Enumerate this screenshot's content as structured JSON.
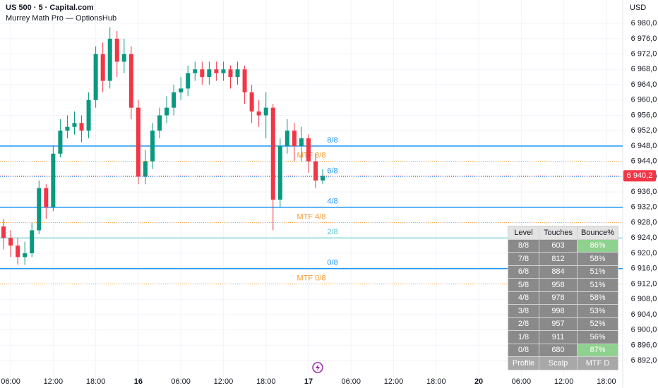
{
  "header": {
    "symbol": "US 500 · 5 · Capital.com",
    "indicator": "Murrey Math Pro — OptionsHub",
    "currency": "USD"
  },
  "chart_data": {
    "type": "candlestick",
    "up_color": "#089981",
    "down_color": "#f23645",
    "grid": true,
    "ylim": [
      6887.6,
      6986.1
    ],
    "yticks": [
      {
        "value": 6980,
        "label": "6 980,0"
      },
      {
        "value": 6976,
        "label": "6 976,0"
      },
      {
        "value": 6972,
        "label": "6 972,0"
      },
      {
        "value": 6968,
        "label": "6 968,0"
      },
      {
        "value": 6964,
        "label": "6 964,0"
      },
      {
        "value": 6960,
        "label": "6 960,0"
      },
      {
        "value": 6956,
        "label": "6 956,0"
      },
      {
        "value": 6952,
        "label": "6 952,0"
      },
      {
        "value": 6948,
        "label": "6 948,0"
      },
      {
        "value": 6944,
        "label": "6 944,0"
      },
      {
        "value": 6940,
        "label": "6 940,0"
      },
      {
        "value": 6936,
        "label": "6 936,0"
      },
      {
        "value": 6932,
        "label": "6 932,0"
      },
      {
        "value": 6928,
        "label": "6 928,0"
      },
      {
        "value": 6924,
        "label": "6 924,0"
      },
      {
        "value": 6920,
        "label": "6 920,0"
      },
      {
        "value": 6916,
        "label": "6 916,0"
      },
      {
        "value": 6912,
        "label": "6 912,0"
      },
      {
        "value": 6908,
        "label": "6 908,0"
      },
      {
        "value": 6904,
        "label": "6 904,0"
      },
      {
        "value": 6900,
        "label": "6 900,0"
      },
      {
        "value": 6896,
        "label": "6 896,0"
      },
      {
        "value": 6892,
        "label": "6 892,0"
      }
    ],
    "xlim": [
      4.5,
      92.3
    ],
    "xticks": [
      {
        "value": 6,
        "label": "06:00"
      },
      {
        "value": 12,
        "label": "12:00"
      },
      {
        "value": 18,
        "label": "18:00"
      },
      {
        "value": 24,
        "label": "16"
      },
      {
        "value": 30,
        "label": "06:00"
      },
      {
        "value": 36,
        "label": "12:00"
      },
      {
        "value": 42,
        "label": "18:00"
      },
      {
        "value": 48,
        "label": "17"
      },
      {
        "value": 54,
        "label": "06:00"
      },
      {
        "value": 60,
        "label": "12:00"
      },
      {
        "value": 66,
        "label": "18:00"
      },
      {
        "value": 72,
        "label": "20"
      },
      {
        "value": 78,
        "label": "06:00"
      },
      {
        "value": 84,
        "label": "12:00"
      },
      {
        "value": 90,
        "label": "18:00"
      }
    ],
    "x": [
      5,
      6,
      7,
      8,
      9,
      10,
      11,
      12,
      13,
      14,
      15,
      16,
      17,
      18,
      19,
      20,
      21,
      22,
      23,
      24,
      25,
      26,
      27,
      28,
      29,
      30,
      31,
      32,
      33,
      34,
      35,
      36,
      37,
      38,
      39,
      40,
      41,
      42,
      43,
      44,
      45,
      46,
      47,
      48,
      49,
      50
    ],
    "open": [
      6927,
      6924,
      6922,
      6919,
      6920,
      6926,
      6937,
      6932,
      6946,
      6952,
      6953,
      6954,
      6952,
      6960,
      6972,
      6965,
      6976,
      6970,
      6972,
      6958,
      6940,
      6944,
      6952,
      6956,
      6958,
      6962,
      6963,
      6967,
      6968,
      6966,
      6968,
      6967,
      6968,
      6966,
      6968,
      6962,
      6957,
      6956,
      6958,
      6934,
      6948,
      6952,
      6948,
      6950,
      6944,
      6939
    ],
    "high": [
      6929,
      6926,
      6924,
      6923,
      6928,
      6939,
      6938,
      6948,
      6955,
      6956,
      6957,
      6956,
      6962,
      6974,
      6975,
      6979,
      6978,
      6976,
      6974,
      6960,
      6947,
      6954,
      6958,
      6961,
      6964,
      6966,
      6969,
      6970,
      6970,
      6970,
      6970,
      6970,
      6969,
      6970,
      6969,
      6964,
      6960,
      6962,
      6959,
      6950,
      6955,
      6954,
      6953,
      6951,
      6946,
      6942
    ],
    "low": [
      6921,
      6919,
      6917,
      6917,
      6919,
      6925,
      6929,
      6931,
      6945,
      6950,
      6951,
      6949,
      6950,
      6958,
      6962,
      6963,
      6966,
      6967,
      6955,
      6938,
      6938,
      6942,
      6950,
      6954,
      6956,
      6960,
      6961,
      6965,
      6964,
      6964,
      6965,
      6965,
      6963,
      6964,
      6959,
      6954,
      6953,
      6950,
      6926,
      6932,
      6946,
      6944,
      6944,
      6941,
      6937,
      6938
    ],
    "close": [
      6924,
      6922,
      6919,
      6920,
      6926,
      6937,
      6932,
      6946,
      6952,
      6953,
      6954,
      6952,
      6960,
      6972,
      6965,
      6976,
      6970,
      6972,
      6958,
      6940,
      6944,
      6952,
      6956,
      6958,
      6962,
      6963,
      6967,
      6968,
      6966,
      6968,
      6967,
      6968,
      6966,
      6968,
      6962,
      6957,
      6956,
      6958,
      6934,
      6948,
      6952,
      6948,
      6950,
      6944,
      6939,
      6940.2
    ],
    "levels": [
      {
        "label": "8/8",
        "value": 6948,
        "color": "#2196f3",
        "style": "solid"
      },
      {
        "label": "MTF 8/8",
        "value": 6944,
        "color": "#f59c2f",
        "style": "dotted"
      },
      {
        "label": "6/8",
        "value": 6940,
        "color": "#2196f3",
        "style": "dotted"
      },
      {
        "label": "4/8",
        "value": 6932,
        "color": "#2196f3",
        "style": "solid"
      },
      {
        "label": "MTF 4/8",
        "value": 6928,
        "color": "#f59c2f",
        "style": "dotted"
      },
      {
        "label": "2/8",
        "value": 6924,
        "color": "#4dc3c8",
        "style": "thin"
      },
      {
        "label": "0/8",
        "value": 6916,
        "color": "#2196f3",
        "style": "solid"
      },
      {
        "label": "MTF 0/8",
        "value": 6912,
        "color": "#f59c2f",
        "style": "dotted"
      }
    ],
    "last": {
      "value": 6940.2,
      "label": "6 940,2",
      "color": "#f23645"
    }
  },
  "table": {
    "columns": [
      "Level",
      "Touches",
      "Bounce%"
    ],
    "rows": [
      [
        "8/8",
        "603",
        "86%"
      ],
      [
        "7/8",
        "812",
        "58%"
      ],
      [
        "6/8",
        "884",
        "51%"
      ],
      [
        "5/8",
        "958",
        "51%"
      ],
      [
        "4/8",
        "978",
        "58%"
      ],
      [
        "3/8",
        "998",
        "53%"
      ],
      [
        "2/8",
        "957",
        "52%"
      ],
      [
        "1/8",
        "911",
        "56%"
      ],
      [
        "0/8",
        "680",
        "87%"
      ]
    ],
    "highlight": [
      [
        0,
        2
      ],
      [
        8,
        2
      ]
    ],
    "footer": [
      "Profile",
      "Scalp",
      "MTF D"
    ]
  }
}
